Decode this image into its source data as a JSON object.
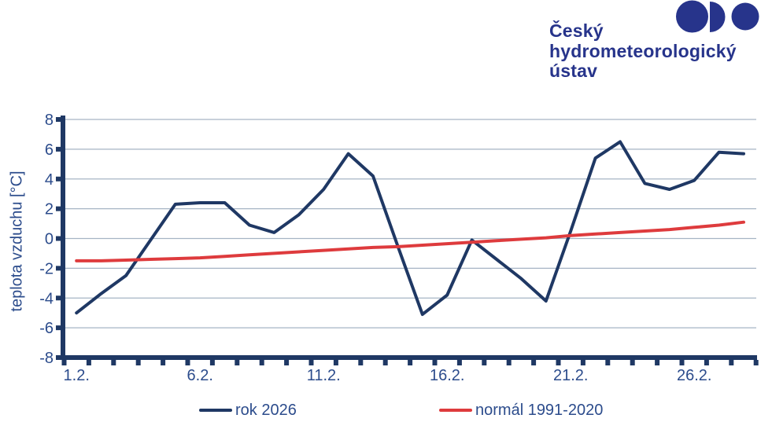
{
  "logo": {
    "line1": "Český",
    "line2": "hydrometeorologický",
    "line3": "ústav",
    "color": "#27348B"
  },
  "chart_data": {
    "type": "line",
    "title": "",
    "xlabel": "",
    "ylabel": "teplota vzduchu [°C]",
    "ylim": [
      -8,
      8
    ],
    "y_ticks": [
      8,
      6,
      4,
      2,
      0,
      -2,
      -4,
      -6,
      -8
    ],
    "x": [
      1,
      2,
      3,
      4,
      5,
      6,
      7,
      8,
      9,
      10,
      11,
      12,
      13,
      14,
      15,
      16,
      17,
      18,
      19,
      20,
      21,
      22,
      23,
      24,
      25,
      26,
      27,
      28
    ],
    "x_tick_positions": [
      1,
      6,
      11,
      16,
      21,
      26
    ],
    "x_tick_labels": [
      "1.2.",
      "6.2.",
      "11.2.",
      "16.2.",
      "21.2.",
      "26.2."
    ],
    "grid": "horizontal",
    "legend_position": "bottom",
    "axis_color": "#1F3864",
    "label_color": "#2C4C8C",
    "grid_color": "#A6B4C4",
    "series": [
      {
        "name": "rok 2026",
        "color": "#1F3864",
        "values": [
          -5.0,
          -3.7,
          -2.5,
          -0.1,
          2.3,
          2.4,
          2.4,
          0.9,
          0.4,
          1.6,
          3.3,
          5.7,
          4.2,
          -0.5,
          -5.1,
          -3.8,
          -0.1,
          -1.4,
          -2.7,
          -4.2,
          0.5,
          5.4,
          6.5,
          3.7,
          3.3,
          3.9,
          5.8,
          5.7
        ]
      },
      {
        "name": "normál 1991-2020",
        "color": "#DE3B3D",
        "values": [
          -1.5,
          -1.5,
          -1.45,
          -1.4,
          -1.35,
          -1.3,
          -1.2,
          -1.1,
          -1.0,
          -0.9,
          -0.8,
          -0.7,
          -0.6,
          -0.55,
          -0.45,
          -0.35,
          -0.25,
          -0.15,
          -0.05,
          0.05,
          0.2,
          0.3,
          0.4,
          0.5,
          0.6,
          0.75,
          0.9,
          1.1
        ]
      }
    ]
  }
}
